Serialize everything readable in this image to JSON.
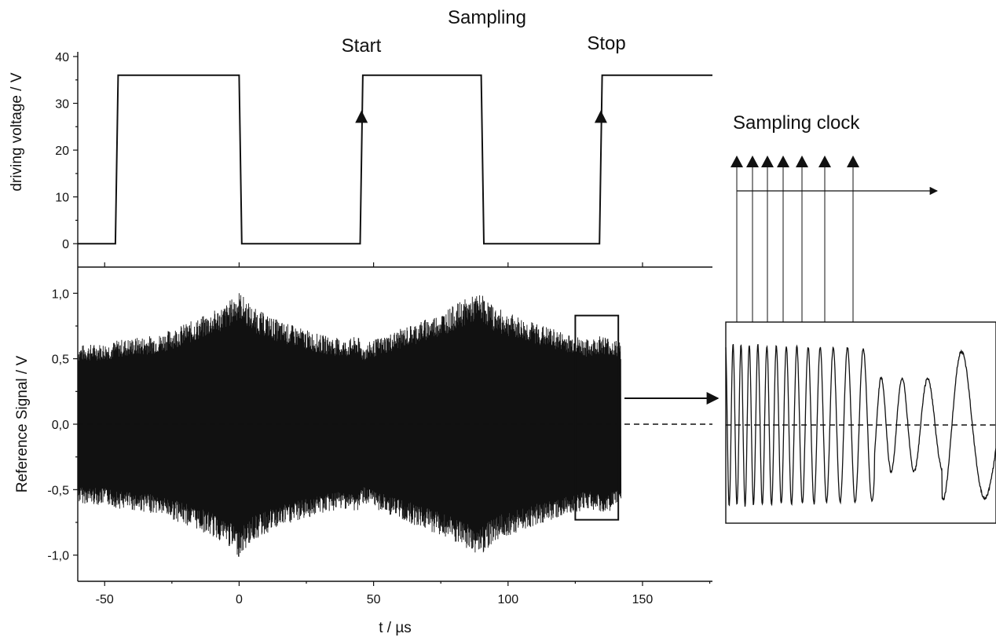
{
  "chart_data": [
    {
      "type": "line",
      "panel": "top",
      "ylabel": "driving voltage / V",
      "xlim": [
        -60,
        176
      ],
      "ylim": [
        -5,
        41
      ],
      "yticks": [
        0,
        10,
        20,
        30,
        40
      ],
      "yticks_text": [
        "0",
        "10",
        "20",
        "30",
        "40"
      ],
      "series": [
        {
          "points": [
            [
              -60,
              0
            ],
            [
              -46,
              0
            ],
            [
              -45,
              36
            ],
            [
              0,
              36
            ],
            [
              1,
              0
            ],
            [
              45,
              0
            ],
            [
              46,
              36
            ],
            [
              90,
              36
            ],
            [
              91,
              0
            ],
            [
              134,
              0
            ],
            [
              135,
              36
            ],
            [
              176,
              36
            ]
          ]
        }
      ],
      "annotations": {
        "title": "Sampling",
        "start": "Start",
        "stop": "Stop",
        "start_marker": [
          45.5,
          27
        ],
        "stop_marker": [
          134.5,
          27
        ]
      }
    },
    {
      "type": "line",
      "panel": "bottom",
      "xlabel": "t / µs",
      "ylabel": "Reference Signal / V",
      "xlim": [
        -60,
        176
      ],
      "ylim": [
        -1.2,
        1.2
      ],
      "xticks": [
        -50,
        0,
        50,
        100,
        150
      ],
      "xticks_text": [
        "-50",
        "0",
        "50",
        "100",
        "150"
      ],
      "yticks": [
        -1.0,
        -0.5,
        0.0,
        0.5,
        1.0
      ],
      "yticks_text": [
        "-1,0",
        "-0,5",
        "0,0",
        "0,5",
        "1,0"
      ],
      "zero_line": "dashed",
      "envelope": {
        "t": [
          -60,
          -48,
          -45,
          -30,
          -15,
          -5,
          0,
          5,
          15,
          30,
          40,
          44,
          46,
          50,
          60,
          75,
          85,
          90,
          95,
          105,
          120,
          130,
          135,
          142
        ],
        "amp": [
          0.58,
          0.6,
          0.62,
          0.66,
          0.78,
          0.88,
          0.98,
          0.86,
          0.76,
          0.66,
          0.62,
          0.65,
          0.58,
          0.62,
          0.7,
          0.82,
          0.93,
          0.96,
          0.86,
          0.78,
          0.68,
          0.62,
          0.66,
          0.6
        ]
      },
      "zoom_box": {
        "t": [
          125,
          141
        ],
        "v": [
          -0.73,
          0.83
        ]
      }
    },
    {
      "type": "line",
      "panel": "inset",
      "title": "Sampling clock",
      "zero_line": "dashed",
      "clock_marks": 7
    }
  ]
}
